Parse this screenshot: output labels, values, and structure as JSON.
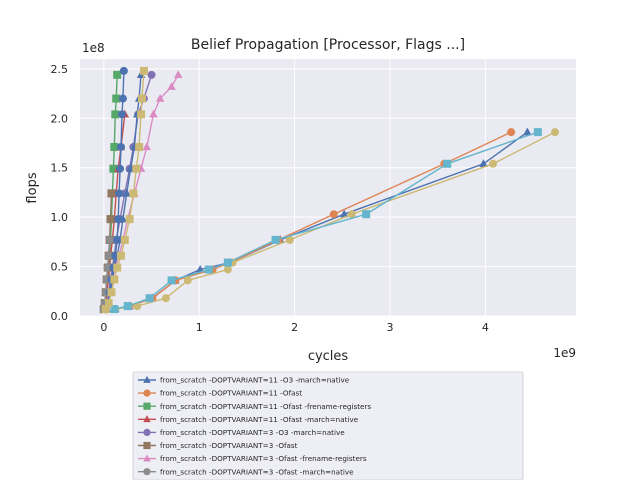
{
  "chart_data": {
    "type": "line",
    "title": "Belief Propagation [Processor, Flags ...]",
    "xlabel": "cycles",
    "ylabel": "flops",
    "x_multiplier": "1e9",
    "y_multiplier": "1e8",
    "xlim": [
      -0.25,
      4.95
    ],
    "ylim": [
      0,
      2.6
    ],
    "x_ticks": [
      0,
      1,
      2,
      3,
      4
    ],
    "y_ticks": [
      0.0,
      0.5,
      1.0,
      1.5,
      2.0,
      2.5
    ],
    "x_tick_labels": [
      "0",
      "1",
      "2",
      "3",
      "4"
    ],
    "y_tick_labels": [
      "0.0",
      "0.5",
      "1.0",
      "1.5",
      "2.0",
      "2.5"
    ],
    "grid": true,
    "legend_position": "below",
    "series": [
      {
        "name": "from_scratch -DOPTVARIANT=11 -O3 -march=native",
        "color": "#4c72b0",
        "marker": "triangle",
        "x": [
          0.12,
          0.27,
          0.51,
          0.75,
          1.01,
          1.32,
          1.85,
          2.52,
          3.98,
          4.44
        ],
        "y": [
          0.07,
          0.1,
          0.18,
          0.36,
          0.47,
          0.54,
          0.77,
          1.03,
          1.54,
          1.86
        ]
      },
      {
        "name": "from_scratch -DOPTVARIANT=11 -Ofast",
        "color": "#dd8452",
        "marker": "circle",
        "x": [
          0.12,
          0.27,
          0.51,
          0.75,
          1.14,
          1.32,
          1.83,
          2.41,
          3.57,
          4.27
        ],
        "y": [
          0.07,
          0.1,
          0.18,
          0.36,
          0.47,
          0.54,
          0.77,
          1.03,
          1.54,
          1.86
        ]
      },
      {
        "name": "from_scratch -DOPTVARIANT=11 -Ofast -frename-registers",
        "color": "#55a868",
        "marker": "square",
        "x": [
          0.0,
          0.01,
          0.03,
          0.04,
          0.05,
          0.06,
          0.07,
          0.08,
          0.09,
          0.1,
          0.11,
          0.12,
          0.13,
          0.14
        ],
        "y": [
          0.07,
          0.13,
          0.24,
          0.37,
          0.49,
          0.61,
          0.77,
          0.98,
          1.24,
          1.49,
          1.71,
          2.04,
          2.2,
          2.44
        ]
      },
      {
        "name": "from_scratch -DOPTVARIANT=11 -Ofast -march=native",
        "color": "#c44e52",
        "marker": "triangle",
        "x": [
          0.01,
          0.02,
          0.03,
          0.05,
          0.06,
          0.07,
          0.09,
          0.11,
          0.13,
          0.15,
          0.18,
          0.22
        ],
        "y": [
          0.07,
          0.13,
          0.24,
          0.37,
          0.49,
          0.61,
          0.77,
          0.98,
          1.24,
          1.49,
          1.71,
          2.04
        ]
      },
      {
        "name": "from_scratch -DOPTVARIANT=3 -O3 -march=native",
        "color": "#8172b3",
        "marker": "circle",
        "x": [
          0.02,
          0.03,
          0.05,
          0.07,
          0.09,
          0.11,
          0.13,
          0.17,
          0.22,
          0.27,
          0.31,
          0.36,
          0.42,
          0.5
        ],
        "y": [
          0.07,
          0.13,
          0.24,
          0.37,
          0.49,
          0.61,
          0.77,
          0.98,
          1.24,
          1.49,
          1.71,
          2.04,
          2.2,
          2.44
        ]
      },
      {
        "name": "from_scratch -DOPTVARIANT=3 -Ofast",
        "color": "#937860",
        "marker": "square",
        "x": [
          0.0,
          0.01,
          0.02,
          0.03,
          0.04,
          0.05,
          0.06,
          0.07,
          0.08
        ],
        "y": [
          0.07,
          0.13,
          0.24,
          0.37,
          0.49,
          0.61,
          0.77,
          0.98,
          1.24
        ]
      },
      {
        "name": "from_scratch -DOPTVARIANT=3 -Ofast -frename-registers",
        "color": "#da8bc3",
        "marker": "triangle",
        "x": [
          0.01,
          0.03,
          0.06,
          0.09,
          0.12,
          0.16,
          0.2,
          0.25,
          0.32,
          0.39,
          0.45,
          0.52,
          0.59,
          0.71,
          0.78
        ],
        "y": [
          0.07,
          0.13,
          0.24,
          0.37,
          0.49,
          0.61,
          0.77,
          0.98,
          1.24,
          1.49,
          1.71,
          2.04,
          2.2,
          2.32,
          2.44
        ]
      },
      {
        "name": "from_scratch -DOPTVARIANT=3 -Ofast -march=native",
        "color": "#8c8c8c",
        "marker": "circle",
        "x": [
          0.0,
          0.01,
          0.02,
          0.03,
          0.04,
          0.05,
          0.06
        ],
        "y": [
          0.07,
          0.13,
          0.24,
          0.37,
          0.49,
          0.61,
          0.77
        ]
      },
      {
        "name": "",
        "color": "#ccb974",
        "marker": "circle",
        "x": [
          0.12,
          0.35,
          0.65,
          0.88,
          1.3,
          1.35,
          1.95,
          2.6,
          4.08,
          4.73
        ],
        "y": [
          0.07,
          0.1,
          0.18,
          0.36,
          0.47,
          0.54,
          0.77,
          1.03,
          1.54,
          1.86
        ]
      },
      {
        "name": "",
        "color": "#64b5cd",
        "marker": "square",
        "x": [
          0.11,
          0.25,
          0.48,
          0.71,
          1.1,
          1.3,
          1.8,
          2.75,
          3.6,
          4.55
        ],
        "y": [
          0.07,
          0.1,
          0.18,
          0.36,
          0.47,
          0.54,
          0.77,
          1.03,
          1.54,
          1.86
        ]
      },
      {
        "name": "",
        "color": "#4c72b0",
        "marker": "circle",
        "x": [
          0.02,
          0.04,
          0.06,
          0.08,
          0.1,
          0.12,
          0.14,
          0.15,
          0.16,
          0.17,
          0.18,
          0.19,
          0.2,
          0.21
        ],
        "y": [
          0.07,
          0.13,
          0.24,
          0.37,
          0.49,
          0.61,
          0.77,
          0.98,
          1.24,
          1.49,
          1.71,
          2.04,
          2.2,
          2.48
        ]
      },
      {
        "name": "",
        "color": "#4c72b0",
        "marker": "triangle",
        "x": [
          0.03,
          0.05,
          0.07,
          0.09,
          0.11,
          0.14,
          0.17,
          0.2,
          0.24,
          0.28,
          0.32,
          0.35,
          0.37,
          0.39
        ],
        "y": [
          0.07,
          0.13,
          0.24,
          0.37,
          0.49,
          0.61,
          0.77,
          0.98,
          1.24,
          1.49,
          1.71,
          2.04,
          2.2,
          2.44
        ]
      },
      {
        "name": "",
        "color": "#ccb974",
        "marker": "square",
        "x": [
          0.02,
          0.05,
          0.08,
          0.11,
          0.14,
          0.18,
          0.22,
          0.27,
          0.31,
          0.34,
          0.37,
          0.39,
          0.4,
          0.42
        ],
        "y": [
          0.07,
          0.13,
          0.24,
          0.37,
          0.49,
          0.61,
          0.77,
          0.98,
          1.24,
          1.49,
          1.71,
          2.04,
          2.2,
          2.48
        ]
      }
    ]
  }
}
